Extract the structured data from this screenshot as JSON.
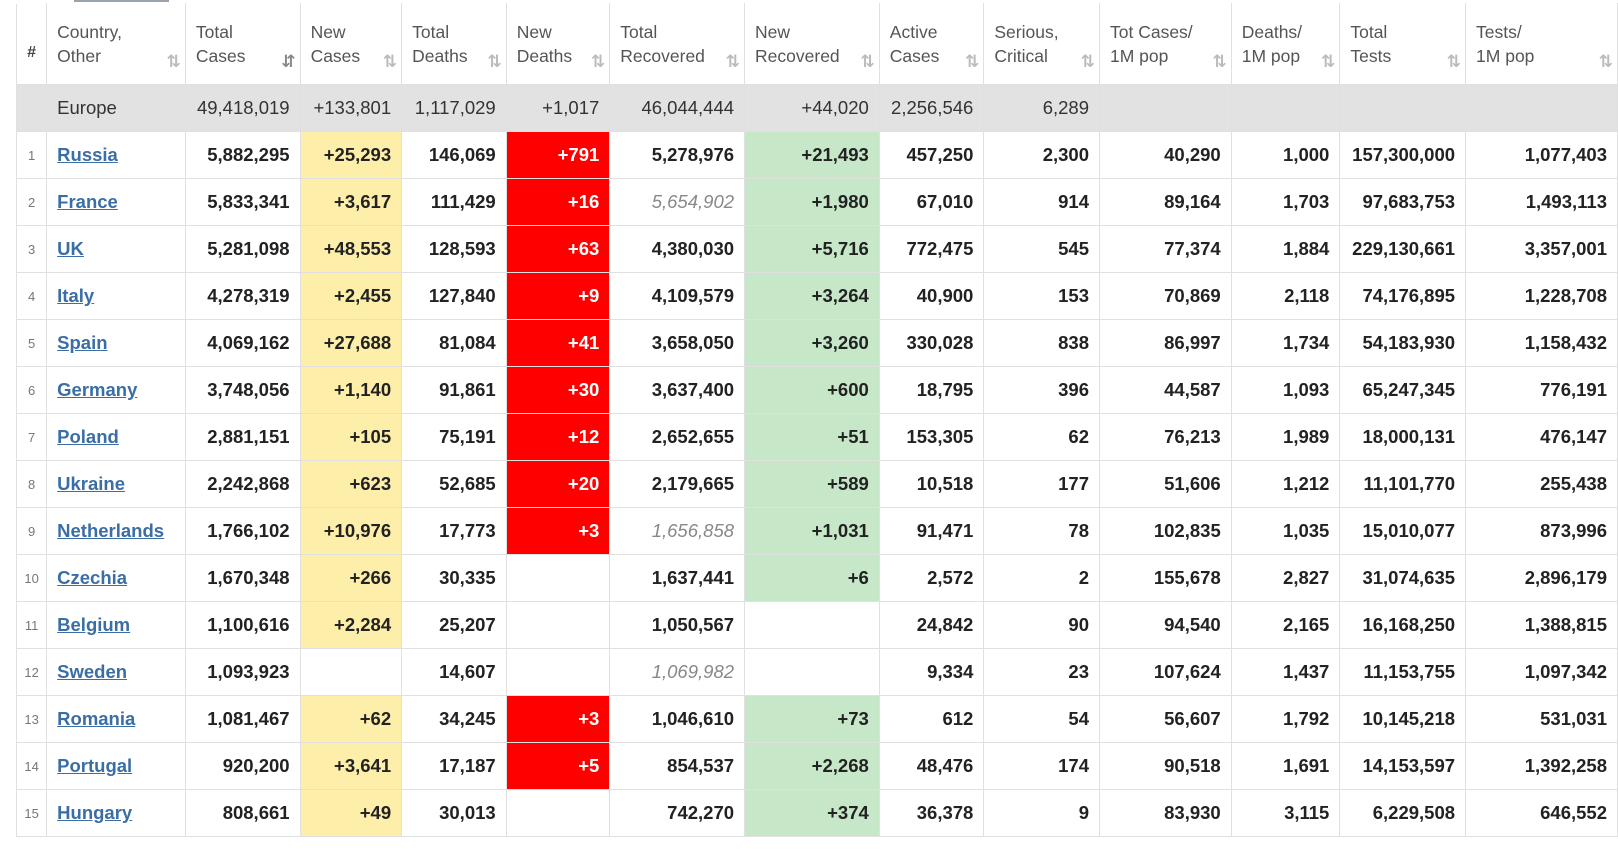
{
  "header": {
    "hash": "#",
    "columns": [
      {
        "line1": "Country,",
        "line2": "Other",
        "sort": "⇅"
      },
      {
        "line1": "Total",
        "line2": "Cases",
        "sort": "⇵"
      },
      {
        "line1": "New",
        "line2": "Cases",
        "sort": "⇅"
      },
      {
        "line1": "Total",
        "line2": "Deaths",
        "sort": "⇅"
      },
      {
        "line1": "New",
        "line2": "Deaths",
        "sort": "⇅"
      },
      {
        "line1": "Total",
        "line2": "Recovered",
        "sort": "⇅"
      },
      {
        "line1": "New",
        "line2": "Recovered",
        "sort": "⇅"
      },
      {
        "line1": "Active",
        "line2": "Cases",
        "sort": "⇅"
      },
      {
        "line1": "Serious,",
        "line2": "Critical",
        "sort": "⇅"
      },
      {
        "line1": "Tot Cases/",
        "line2": "1M pop",
        "sort": "⇅"
      },
      {
        "line1": "Deaths/",
        "line2": "1M pop",
        "sort": "⇅"
      },
      {
        "line1": "Total",
        "line2": "Tests",
        "sort": "⇅"
      },
      {
        "line1": "Tests/",
        "line2": "1M pop",
        "sort": "⇅"
      }
    ]
  },
  "region": {
    "name": "Europe",
    "total_cases": "49,418,019",
    "new_cases": "+133,801",
    "total_deaths": "1,117,029",
    "new_deaths": "+1,017",
    "total_recovered": "46,044,444",
    "new_recovered": "+44,020",
    "active_cases": "2,256,546",
    "serious": "6,289",
    "cases_per_m": "",
    "deaths_per_m": "",
    "total_tests": "",
    "tests_per_m": ""
  },
  "rows": [
    {
      "n": "1",
      "country": "Russia",
      "total_cases": "5,882,295",
      "new_cases": "+25,293",
      "total_deaths": "146,069",
      "new_deaths": "+791",
      "total_recovered": "5,278,976",
      "recovered_italic": false,
      "new_recovered": "+21,493",
      "active_cases": "457,250",
      "serious": "2,300",
      "cases_per_m": "40,290",
      "deaths_per_m": "1,000",
      "total_tests": "157,300,000",
      "tests_per_m": "1,077,403"
    },
    {
      "n": "2",
      "country": "France",
      "total_cases": "5,833,341",
      "new_cases": "+3,617",
      "total_deaths": "111,429",
      "new_deaths": "+16",
      "total_recovered": "5,654,902",
      "recovered_italic": true,
      "new_recovered": "+1,980",
      "active_cases": "67,010",
      "serious": "914",
      "cases_per_m": "89,164",
      "deaths_per_m": "1,703",
      "total_tests": "97,683,753",
      "tests_per_m": "1,493,113"
    },
    {
      "n": "3",
      "country": "UK",
      "total_cases": "5,281,098",
      "new_cases": "+48,553",
      "total_deaths": "128,593",
      "new_deaths": "+63",
      "total_recovered": "4,380,030",
      "recovered_italic": false,
      "new_recovered": "+5,716",
      "active_cases": "772,475",
      "serious": "545",
      "cases_per_m": "77,374",
      "deaths_per_m": "1,884",
      "total_tests": "229,130,661",
      "tests_per_m": "3,357,001"
    },
    {
      "n": "4",
      "country": "Italy",
      "total_cases": "4,278,319",
      "new_cases": "+2,455",
      "total_deaths": "127,840",
      "new_deaths": "+9",
      "total_recovered": "4,109,579",
      "recovered_italic": false,
      "new_recovered": "+3,264",
      "active_cases": "40,900",
      "serious": "153",
      "cases_per_m": "70,869",
      "deaths_per_m": "2,118",
      "total_tests": "74,176,895",
      "tests_per_m": "1,228,708"
    },
    {
      "n": "5",
      "country": "Spain",
      "total_cases": "4,069,162",
      "new_cases": "+27,688",
      "total_deaths": "81,084",
      "new_deaths": "+41",
      "total_recovered": "3,658,050",
      "recovered_italic": false,
      "new_recovered": "+3,260",
      "active_cases": "330,028",
      "serious": "838",
      "cases_per_m": "86,997",
      "deaths_per_m": "1,734",
      "total_tests": "54,183,930",
      "tests_per_m": "1,158,432"
    },
    {
      "n": "6",
      "country": "Germany",
      "total_cases": "3,748,056",
      "new_cases": "+1,140",
      "total_deaths": "91,861",
      "new_deaths": "+30",
      "total_recovered": "3,637,400",
      "recovered_italic": false,
      "new_recovered": "+600",
      "active_cases": "18,795",
      "serious": "396",
      "cases_per_m": "44,587",
      "deaths_per_m": "1,093",
      "total_tests": "65,247,345",
      "tests_per_m": "776,191"
    },
    {
      "n": "7",
      "country": "Poland",
      "total_cases": "2,881,151",
      "new_cases": "+105",
      "total_deaths": "75,191",
      "new_deaths": "+12",
      "total_recovered": "2,652,655",
      "recovered_italic": false,
      "new_recovered": "+51",
      "active_cases": "153,305",
      "serious": "62",
      "cases_per_m": "76,213",
      "deaths_per_m": "1,989",
      "total_tests": "18,000,131",
      "tests_per_m": "476,147"
    },
    {
      "n": "8",
      "country": "Ukraine",
      "total_cases": "2,242,868",
      "new_cases": "+623",
      "total_deaths": "52,685",
      "new_deaths": "+20",
      "total_recovered": "2,179,665",
      "recovered_italic": false,
      "new_recovered": "+589",
      "active_cases": "10,518",
      "serious": "177",
      "cases_per_m": "51,606",
      "deaths_per_m": "1,212",
      "total_tests": "11,101,770",
      "tests_per_m": "255,438"
    },
    {
      "n": "9",
      "country": "Netherlands",
      "total_cases": "1,766,102",
      "new_cases": "+10,976",
      "total_deaths": "17,773",
      "new_deaths": "+3",
      "total_recovered": "1,656,858",
      "recovered_italic": true,
      "new_recovered": "+1,031",
      "active_cases": "91,471",
      "serious": "78",
      "cases_per_m": "102,835",
      "deaths_per_m": "1,035",
      "total_tests": "15,010,077",
      "tests_per_m": "873,996"
    },
    {
      "n": "10",
      "country": "Czechia",
      "total_cases": "1,670,348",
      "new_cases": "+266",
      "total_deaths": "30,335",
      "new_deaths": "",
      "total_recovered": "1,637,441",
      "recovered_italic": false,
      "new_recovered": "+6",
      "active_cases": "2,572",
      "serious": "2",
      "cases_per_m": "155,678",
      "deaths_per_m": "2,827",
      "total_tests": "31,074,635",
      "tests_per_m": "2,896,179"
    },
    {
      "n": "11",
      "country": "Belgium",
      "total_cases": "1,100,616",
      "new_cases": "+2,284",
      "total_deaths": "25,207",
      "new_deaths": "",
      "total_recovered": "1,050,567",
      "recovered_italic": false,
      "new_recovered": "",
      "active_cases": "24,842",
      "serious": "90",
      "cases_per_m": "94,540",
      "deaths_per_m": "2,165",
      "total_tests": "16,168,250",
      "tests_per_m": "1,388,815"
    },
    {
      "n": "12",
      "country": "Sweden",
      "total_cases": "1,093,923",
      "new_cases": "",
      "total_deaths": "14,607",
      "new_deaths": "",
      "total_recovered": "1,069,982",
      "recovered_italic": true,
      "new_recovered": "",
      "active_cases": "9,334",
      "serious": "23",
      "cases_per_m": "107,624",
      "deaths_per_m": "1,437",
      "total_tests": "11,153,755",
      "tests_per_m": "1,097,342"
    },
    {
      "n": "13",
      "country": "Romania",
      "total_cases": "1,081,467",
      "new_cases": "+62",
      "total_deaths": "34,245",
      "new_deaths": "+3",
      "total_recovered": "1,046,610",
      "recovered_italic": false,
      "new_recovered": "+73",
      "active_cases": "612",
      "serious": "54",
      "cases_per_m": "56,607",
      "deaths_per_m": "1,792",
      "total_tests": "10,145,218",
      "tests_per_m": "531,031"
    },
    {
      "n": "14",
      "country": "Portugal",
      "total_cases": "920,200",
      "new_cases": "+3,641",
      "total_deaths": "17,187",
      "new_deaths": "+5",
      "total_recovered": "854,537",
      "recovered_italic": false,
      "new_recovered": "+2,268",
      "active_cases": "48,476",
      "serious": "174",
      "cases_per_m": "90,518",
      "deaths_per_m": "1,691",
      "total_tests": "14,153,597",
      "tests_per_m": "1,392,258"
    },
    {
      "n": "15",
      "country": "Hungary",
      "total_cases": "808,661",
      "new_cases": "+49",
      "total_deaths": "30,013",
      "new_deaths": "",
      "total_recovered": "742,270",
      "recovered_italic": false,
      "new_recovered": "+374",
      "active_cases": "36,378",
      "serious": "9",
      "cases_per_m": "83,930",
      "deaths_per_m": "3,115",
      "total_tests": "6,229,508",
      "tests_per_m": "646,552"
    }
  ],
  "colors": {
    "new_cases_bg": "#fdeeaa",
    "new_deaths_bg": "#ff0000",
    "new_recovered_bg": "#c6e8c9",
    "region_bg": "#e2e2e2",
    "link": "#3a6ea5"
  }
}
